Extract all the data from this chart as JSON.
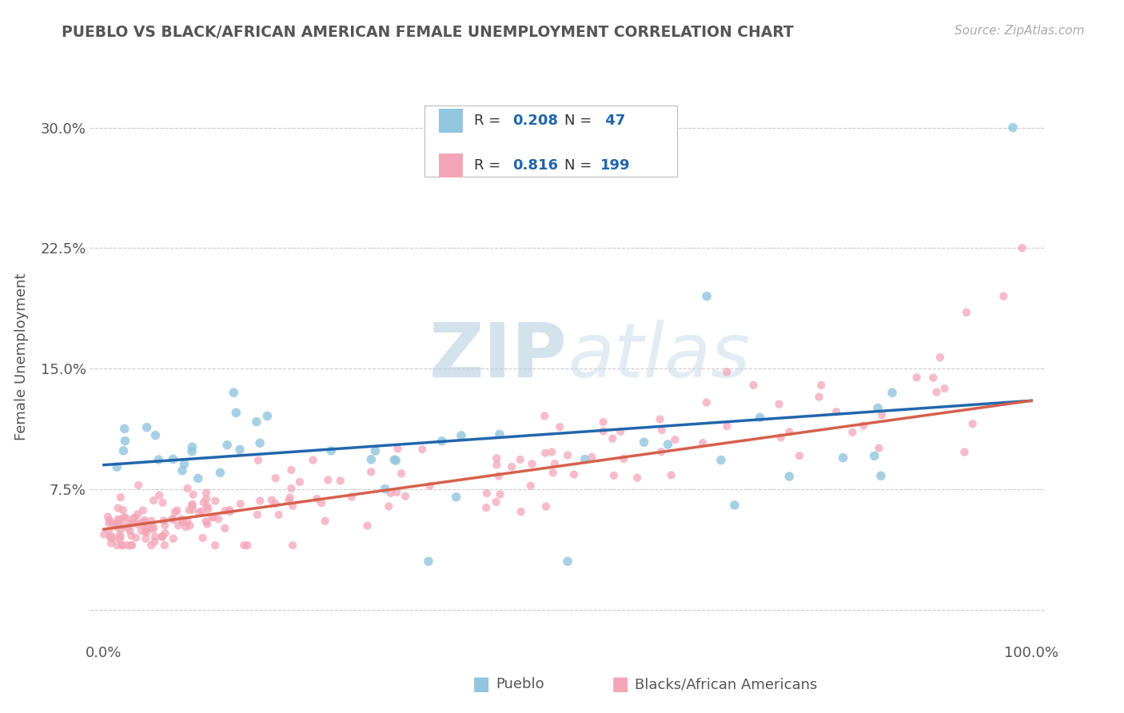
{
  "title": "PUEBLO VS BLACK/AFRICAN AMERICAN FEMALE UNEMPLOYMENT CORRELATION CHART",
  "source": "Source: ZipAtlas.com",
  "ylabel": "Female Unemployment",
  "legend_r1": "0.208",
  "legend_n1": " 47",
  "legend_r2": "0.816",
  "legend_n2": "199",
  "blue_color": "#92c5de",
  "pink_color": "#f4a6b8",
  "blue_line_color": "#2166ac",
  "pink_line_color": "#d6604d",
  "watermark_color": "#d8e4f0",
  "background_color": "#ffffff",
  "grid_color": "#cccccc",
  "title_color": "#555555",
  "source_color": "#aaaaaa",
  "label_color": "#555555",
  "blue_line_intercept": 0.09,
  "blue_line_slope": 0.04,
  "pink_line_intercept": 0.05,
  "pink_line_slope": 0.08
}
